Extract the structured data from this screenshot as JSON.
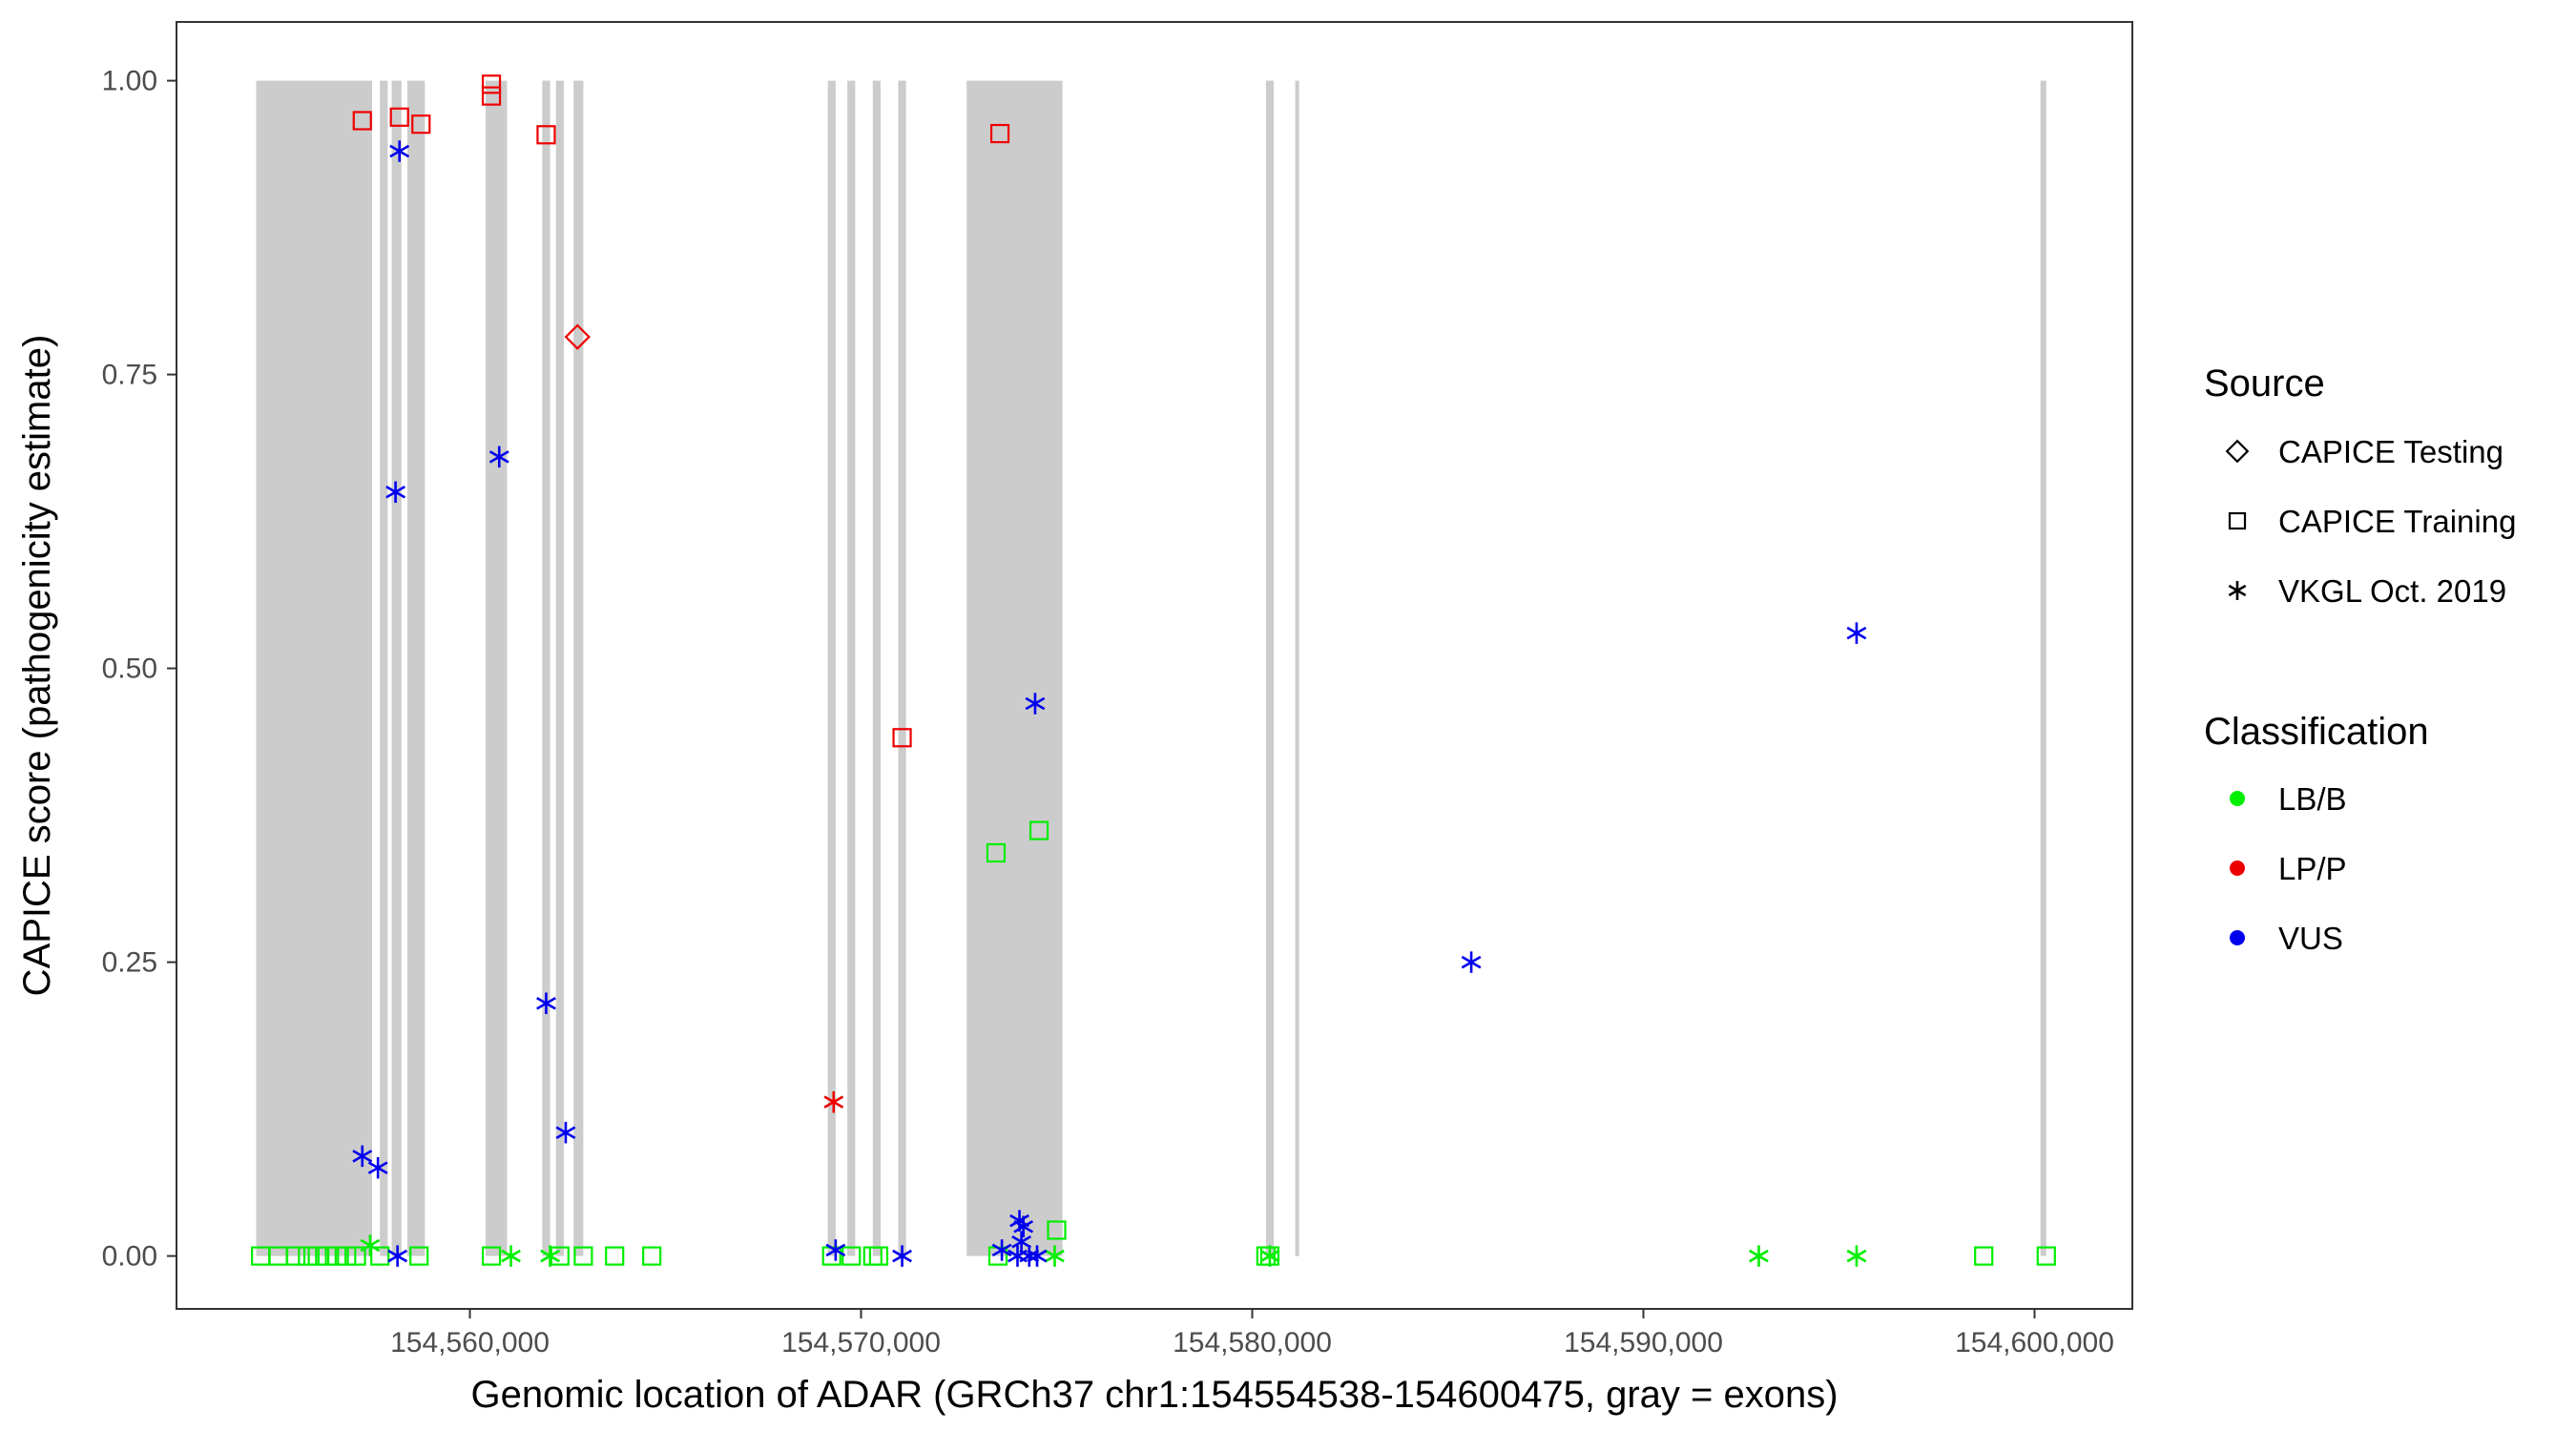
{
  "chart_data": {
    "type": "scatter",
    "xlabel": "Genomic location of ADAR (GRCh37 chr1:154554538-154600475, gray = exons)",
    "ylabel": "CAPICE score (pathogenicity estimate)",
    "xlim": [
      154552500,
      154602500
    ],
    "ylim": [
      -0.045,
      1.05
    ],
    "x_ticks": [
      154560000,
      154570000,
      154580000,
      154590000,
      154600000
    ],
    "x_tick_labels": [
      "154,560,000",
      "154,570,000",
      "154,580,000",
      "154,590,000",
      "154,600,000"
    ],
    "y_ticks": [
      0,
      0.25,
      0.5,
      0.75,
      1.0
    ],
    "y_tick_labels": [
      "0.00",
      "0.25",
      "0.50",
      "0.75",
      "1.00"
    ],
    "grid": false,
    "exons": [
      [
        154554538,
        154557500
      ],
      [
        154557700,
        154557900
      ],
      [
        154558000,
        154558250
      ],
      [
        154558400,
        154558850
      ],
      [
        154560400,
        154560950
      ],
      [
        154561850,
        154562050
      ],
      [
        154562200,
        154562400
      ],
      [
        154562650,
        154562900
      ],
      [
        154569150,
        154569350
      ],
      [
        154569650,
        154569850
      ],
      [
        154570300,
        154570500
      ],
      [
        154570950,
        154571150
      ],
      [
        154572700,
        154575150
      ],
      [
        154580350,
        154580550
      ],
      [
        154581100,
        154581200
      ],
      [
        154600150,
        154600300
      ]
    ],
    "exon_color": "#cccccc",
    "legend_position": "right",
    "legend_source": {
      "title": "Source",
      "items": [
        {
          "label": "CAPICE Testing",
          "shape": "diamond"
        },
        {
          "label": "CAPICE Training",
          "shape": "square"
        },
        {
          "label": "VKGL Oct. 2019",
          "shape": "asterisk"
        }
      ]
    },
    "legend_classification": {
      "title": "Classification",
      "items": [
        {
          "label": "LB/B",
          "color": "#00ee00"
        },
        {
          "label": "LP/P",
          "color": "#ee0000"
        },
        {
          "label": "VUS",
          "color": "#0000ee"
        }
      ]
    },
    "series": [
      {
        "name": "LB/B",
        "color": "#00ee00",
        "points": [
          {
            "x": 154554650,
            "y": 0.0,
            "shape": "square"
          },
          {
            "x": 154555100,
            "y": 0.0,
            "shape": "square"
          },
          {
            "x": 154555550,
            "y": 0.0,
            "shape": "square"
          },
          {
            "x": 154555850,
            "y": 0.0,
            "shape": "square"
          },
          {
            "x": 154556100,
            "y": 0.0,
            "shape": "square"
          },
          {
            "x": 154556350,
            "y": 0.0,
            "shape": "square"
          },
          {
            "x": 154556600,
            "y": 0.0,
            "shape": "square"
          },
          {
            "x": 154556850,
            "y": 0.0,
            "shape": "square"
          },
          {
            "x": 154557100,
            "y": 0.0,
            "shape": "square"
          },
          {
            "x": 154557700,
            "y": 0.0,
            "shape": "square"
          },
          {
            "x": 154558700,
            "y": 0.0,
            "shape": "square"
          },
          {
            "x": 154560550,
            "y": 0.0,
            "shape": "square"
          },
          {
            "x": 154562300,
            "y": 0.0,
            "shape": "square"
          },
          {
            "x": 154562900,
            "y": 0.0,
            "shape": "square"
          },
          {
            "x": 154563700,
            "y": 0.0,
            "shape": "square"
          },
          {
            "x": 154564650,
            "y": 0.0,
            "shape": "square"
          },
          {
            "x": 154569250,
            "y": 0.0,
            "shape": "square"
          },
          {
            "x": 154569750,
            "y": 0.0,
            "shape": "square"
          },
          {
            "x": 154570300,
            "y": 0.0,
            "shape": "square"
          },
          {
            "x": 154570450,
            "y": 0.0,
            "shape": "square"
          },
          {
            "x": 154573450,
            "y": 0.343,
            "shape": "square"
          },
          {
            "x": 154574550,
            "y": 0.362,
            "shape": "square"
          },
          {
            "x": 154575000,
            "y": 0.022,
            "shape": "square"
          },
          {
            "x": 154573500,
            "y": 0.0,
            "shape": "square"
          },
          {
            "x": 154580350,
            "y": 0.0,
            "shape": "square"
          },
          {
            "x": 154580450,
            "y": 0.0,
            "shape": "square"
          },
          {
            "x": 154598700,
            "y": 0.0,
            "shape": "square"
          },
          {
            "x": 154600300,
            "y": 0.0,
            "shape": "square"
          },
          {
            "x": 154557450,
            "y": 0.009,
            "shape": "asterisk"
          },
          {
            "x": 154561050,
            "y": 0.0,
            "shape": "asterisk"
          },
          {
            "x": 154562050,
            "y": 0.0,
            "shape": "asterisk"
          },
          {
            "x": 154574950,
            "y": 0.0,
            "shape": "asterisk"
          },
          {
            "x": 154580450,
            "y": 0.0,
            "shape": "asterisk"
          },
          {
            "x": 154592950,
            "y": 0.0,
            "shape": "asterisk"
          },
          {
            "x": 154595450,
            "y": 0.0,
            "shape": "asterisk"
          }
        ]
      },
      {
        "name": "LP/P",
        "color": "#ee0000",
        "points": [
          {
            "x": 154557250,
            "y": 0.966,
            "shape": "square"
          },
          {
            "x": 154558200,
            "y": 0.969,
            "shape": "square"
          },
          {
            "x": 154558750,
            "y": 0.963,
            "shape": "square"
          },
          {
            "x": 154560550,
            "y": 0.997,
            "shape": "square"
          },
          {
            "x": 154560550,
            "y": 0.987,
            "shape": "square"
          },
          {
            "x": 154561950,
            "y": 0.954,
            "shape": "square"
          },
          {
            "x": 154571050,
            "y": 0.441,
            "shape": "square"
          },
          {
            "x": 154573550,
            "y": 0.955,
            "shape": "square"
          },
          {
            "x": 154562750,
            "y": 0.782,
            "shape": "diamond"
          },
          {
            "x": 154569300,
            "y": 0.131,
            "shape": "asterisk"
          }
        ]
      },
      {
        "name": "VUS",
        "color": "#0000ee",
        "points": [
          {
            "x": 154558200,
            "y": 0.94,
            "shape": "asterisk"
          },
          {
            "x": 154558100,
            "y": 0.65,
            "shape": "asterisk"
          },
          {
            "x": 154560750,
            "y": 0.68,
            "shape": "asterisk"
          },
          {
            "x": 154561950,
            "y": 0.215,
            "shape": "asterisk"
          },
          {
            "x": 154562450,
            "y": 0.105,
            "shape": "asterisk"
          },
          {
            "x": 154557250,
            "y": 0.085,
            "shape": "asterisk"
          },
          {
            "x": 154557650,
            "y": 0.075,
            "shape": "asterisk"
          },
          {
            "x": 154558150,
            "y": 0.0,
            "shape": "asterisk"
          },
          {
            "x": 154569350,
            "y": 0.005,
            "shape": "asterisk"
          },
          {
            "x": 154571050,
            "y": 0.0,
            "shape": "asterisk"
          },
          {
            "x": 154573600,
            "y": 0.005,
            "shape": "asterisk"
          },
          {
            "x": 154574050,
            "y": 0.03,
            "shape": "asterisk"
          },
          {
            "x": 154574150,
            "y": 0.025,
            "shape": "asterisk"
          },
          {
            "x": 154574100,
            "y": 0.012,
            "shape": "asterisk"
          },
          {
            "x": 154574000,
            "y": 0.0,
            "shape": "asterisk"
          },
          {
            "x": 154574300,
            "y": 0.0,
            "shape": "asterisk"
          },
          {
            "x": 154574500,
            "y": 0.0,
            "shape": "asterisk"
          },
          {
            "x": 154574450,
            "y": 0.47,
            "shape": "asterisk"
          },
          {
            "x": 154585600,
            "y": 0.25,
            "shape": "asterisk"
          },
          {
            "x": 154595450,
            "y": 0.53,
            "shape": "asterisk"
          }
        ]
      }
    ]
  }
}
